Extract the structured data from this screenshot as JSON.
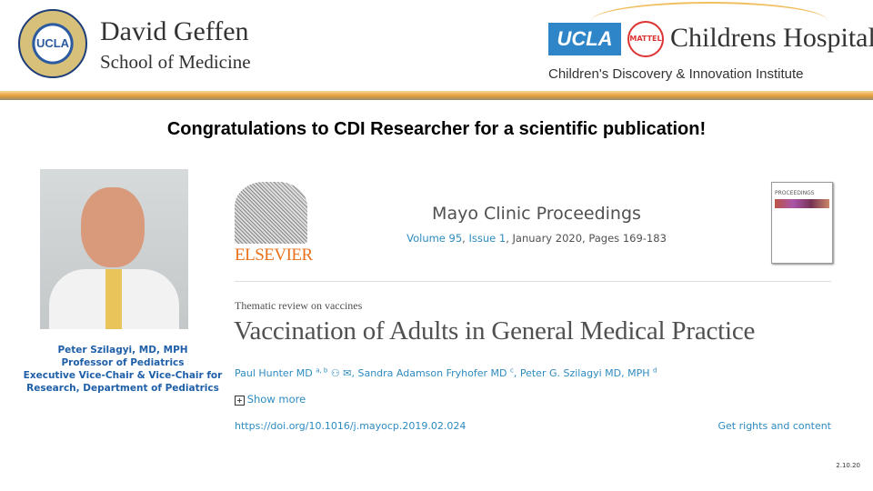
{
  "header": {
    "left_logo": {
      "seal_text": "UCLA",
      "line1": "David Geffen",
      "line2": "School of Medicine"
    },
    "right_logo": {
      "ucla": "UCLA",
      "mattel": "MATTEL",
      "hospital": "Childrens Hospital",
      "institute": "Children's Discovery & Innovation Institute"
    }
  },
  "headline": "Congratulations to CDI Researcher for a scientific publication!",
  "researcher": {
    "name": "Peter Szilagyi, MD, MPH",
    "title1": "Professor of Pediatrics",
    "title2": "Executive Vice-Chair & Vice-Chair for Research, Department of Pediatrics"
  },
  "article": {
    "publisher": "ELSEVIER",
    "journal": "Mayo Clinic Proceedings",
    "volume": "Volume 95",
    "issue": "Issue 1",
    "date_pages": ", January 2020, Pages 169-183",
    "cover_title": "PROCEEDINGS",
    "category": "Thematic review on vaccines",
    "title": "Vaccination of Adults in General Medical Practice",
    "authors": [
      {
        "name": "Paul Hunter MD",
        "aff": "a, b"
      },
      {
        "name": "Sandra Adamson Fryhofer MD",
        "aff": "c"
      },
      {
        "name": "Peter G. Szilagyi MD, MPH",
        "aff": "d"
      }
    ],
    "show_more": "Show more",
    "doi": "https://doi.org/10.1016/j.mayocp.2019.02.024",
    "rights": "Get rights and content"
  },
  "slide_date": "2.10.20",
  "colors": {
    "link": "#2e8bc0",
    "caption": "#1f5fa8",
    "elsevier": "#e9711c",
    "ucla_blue": "#2e86c8"
  }
}
